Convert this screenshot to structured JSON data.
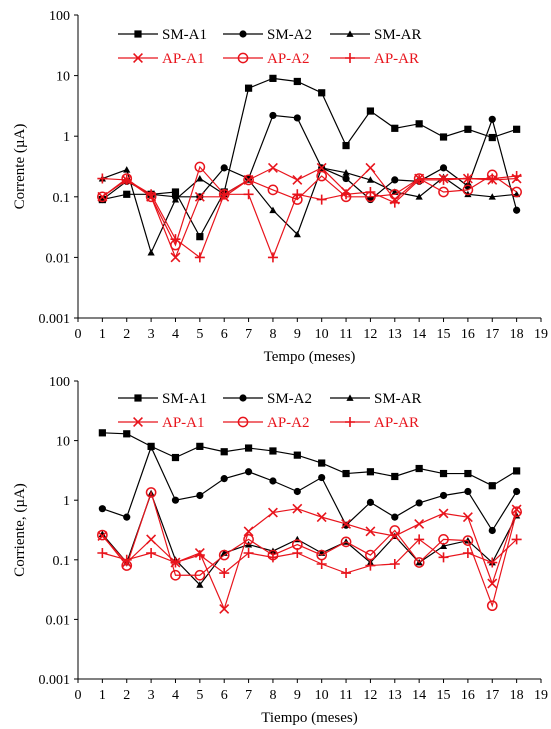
{
  "chart_data": [
    {
      "type": "line",
      "y_scale": "log",
      "xlabel": "Tempo (meses)",
      "ylabel": "Corrente (µA)",
      "xlim": [
        0,
        19
      ],
      "ylim": [
        0.001,
        100
      ],
      "x_ticks": [
        "0",
        "1",
        "2",
        "3",
        "4",
        "5",
        "6",
        "7",
        "8",
        "9",
        "10",
        "11",
        "12",
        "13",
        "14",
        "15",
        "16",
        "17",
        "18",
        "19"
      ],
      "y_ticks": [
        "0.001",
        "0.01",
        "0.1",
        "1",
        "10",
        "100"
      ],
      "grid": false,
      "legend_position": "top",
      "x": [
        1,
        2,
        3,
        4,
        5,
        6,
        7,
        8,
        9,
        10,
        11,
        12,
        13,
        14,
        15,
        16,
        17,
        18
      ],
      "series": [
        {
          "name": "SM-A1",
          "color": "#000000",
          "marker": "square",
          "values": [
            0.09,
            0.11,
            0.11,
            0.12,
            0.022,
            0.12,
            6.2,
            9.0,
            8.0,
            5.2,
            0.7,
            2.6,
            1.35,
            1.6,
            0.97,
            1.3,
            0.95,
            1.3
          ]
        },
        {
          "name": "SM-A2",
          "color": "#000000",
          "marker": "circle",
          "values": [
            0.09,
            0.18,
            0.11,
            0.1,
            0.1,
            0.3,
            0.2,
            2.2,
            2.0,
            0.3,
            0.2,
            0.09,
            0.19,
            0.18,
            0.3,
            0.15,
            1.9,
            0.06
          ]
        },
        {
          "name": "SM-AR",
          "color": "#000000",
          "marker": "triangle",
          "values": [
            0.2,
            0.28,
            0.012,
            0.09,
            0.2,
            0.11,
            0.19,
            0.06,
            0.024,
            0.3,
            0.25,
            0.19,
            0.12,
            0.1,
            0.21,
            0.11,
            0.1,
            0.11
          ]
        },
        {
          "name": "AP-A1",
          "color": "#e8141c",
          "marker": "x",
          "values": [
            0.1,
            0.19,
            0.1,
            0.01,
            0.1,
            0.1,
            0.19,
            0.3,
            0.19,
            0.3,
            0.12,
            0.3,
            0.09,
            0.2,
            0.2,
            0.2,
            0.19,
            0.2
          ]
        },
        {
          "name": "AP-A2",
          "color": "#e8141c",
          "marker": "open-circle",
          "values": [
            0.1,
            0.2,
            0.1,
            0.016,
            0.31,
            0.11,
            0.19,
            0.13,
            0.09,
            0.22,
            0.1,
            0.1,
            0.11,
            0.2,
            0.12,
            0.13,
            0.23,
            0.12
          ]
        },
        {
          "name": "AP-AR",
          "color": "#e8141c",
          "marker": "plus",
          "values": [
            0.2,
            0.19,
            0.11,
            0.02,
            0.01,
            0.11,
            0.11,
            0.01,
            0.11,
            0.09,
            0.11,
            0.12,
            0.08,
            0.19,
            0.19,
            0.2,
            0.2,
            0.22
          ]
        }
      ]
    },
    {
      "type": "line",
      "y_scale": "log",
      "xlabel": "Tiempo (meses)",
      "ylabel": "Corriente, (µA)",
      "xlim": [
        0,
        19
      ],
      "ylim": [
        0.001,
        100
      ],
      "x_ticks": [
        "0",
        "1",
        "2",
        "3",
        "4",
        "5",
        "6",
        "7",
        "8",
        "9",
        "10",
        "11",
        "12",
        "13",
        "14",
        "15",
        "16",
        "17",
        "18",
        "19"
      ],
      "y_ticks": [
        "0.001",
        "0.01",
        "0.1",
        "1",
        "10",
        "100"
      ],
      "grid": false,
      "legend_position": "top",
      "x": [
        1,
        2,
        3,
        4,
        5,
        6,
        7,
        8,
        9,
        10,
        11,
        12,
        13,
        14,
        15,
        16,
        17,
        18
      ],
      "series": [
        {
          "name": "SM-A1",
          "color": "#000000",
          "marker": "square",
          "values": [
            13.5,
            13.0,
            8.0,
            5.2,
            8.0,
            6.5,
            7.5,
            6.7,
            5.7,
            4.2,
            2.8,
            3.0,
            2.5,
            3.4,
            2.8,
            2.8,
            1.75,
            3.1
          ]
        },
        {
          "name": "SM-A2",
          "color": "#000000",
          "marker": "circle",
          "values": [
            0.72,
            0.52,
            7.8,
            1.0,
            1.2,
            2.3,
            3.0,
            2.1,
            1.4,
            2.4,
            0.38,
            0.92,
            0.52,
            0.9,
            1.2,
            1.4,
            0.31,
            1.4
          ]
        },
        {
          "name": "SM-AR",
          "color": "#000000",
          "marker": "triangle",
          "values": [
            0.27,
            0.09,
            1.3,
            0.1,
            0.038,
            0.13,
            0.18,
            0.14,
            0.22,
            0.13,
            0.2,
            0.09,
            0.25,
            0.09,
            0.17,
            0.21,
            0.09,
            0.55
          ]
        },
        {
          "name": "AP-A1",
          "color": "#e8141c",
          "marker": "x",
          "values": [
            0.25,
            0.09,
            0.22,
            0.09,
            0.13,
            0.015,
            0.3,
            0.62,
            0.72,
            0.52,
            0.4,
            0.3,
            0.25,
            0.4,
            0.6,
            0.52,
            0.04,
            0.7
          ]
        },
        {
          "name": "AP-A2",
          "color": "#e8141c",
          "marker": "open-circle",
          "values": [
            0.26,
            0.08,
            1.35,
            0.055,
            0.055,
            0.12,
            0.22,
            0.12,
            0.18,
            0.12,
            0.2,
            0.12,
            0.31,
            0.09,
            0.22,
            0.21,
            0.017,
            0.64
          ]
        },
        {
          "name": "AP-AR",
          "color": "#e8141c",
          "marker": "plus",
          "values": [
            0.13,
            0.1,
            0.13,
            0.09,
            0.12,
            0.06,
            0.13,
            0.11,
            0.13,
            0.085,
            0.06,
            0.08,
            0.085,
            0.22,
            0.11,
            0.13,
            0.09,
            0.22
          ]
        }
      ]
    }
  ]
}
